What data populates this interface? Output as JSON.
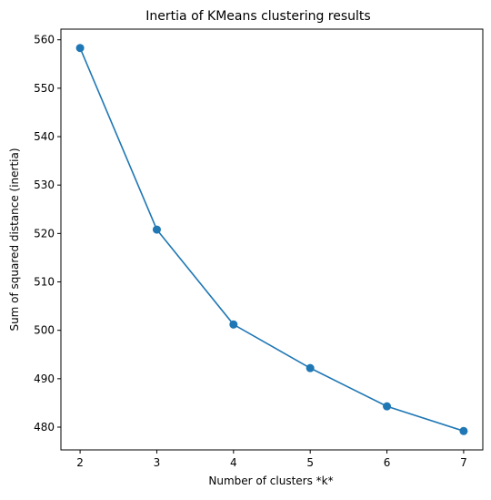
{
  "chart_data": {
    "type": "line",
    "title": "Inertia of KMeans clustering results",
    "xlabel": "Number of clusters *k*",
    "ylabel": "Sum of squared distance (inertia)",
    "x": [
      2,
      3,
      4,
      5,
      6,
      7
    ],
    "series": [
      {
        "values": [
          558.3,
          520.8,
          501.2,
          492.2,
          484.3,
          479.2
        ],
        "color": "#1f77b4",
        "marker": "circle"
      }
    ],
    "xlim": [
      1.75,
      7.25
    ],
    "ylim": [
      475.3,
      562.2
    ],
    "xticks": [
      2,
      3,
      4,
      5,
      6,
      7
    ],
    "yticks": [
      480,
      490,
      500,
      510,
      520,
      530,
      540,
      550,
      560
    ],
    "grid": false,
    "legend": "none"
  }
}
